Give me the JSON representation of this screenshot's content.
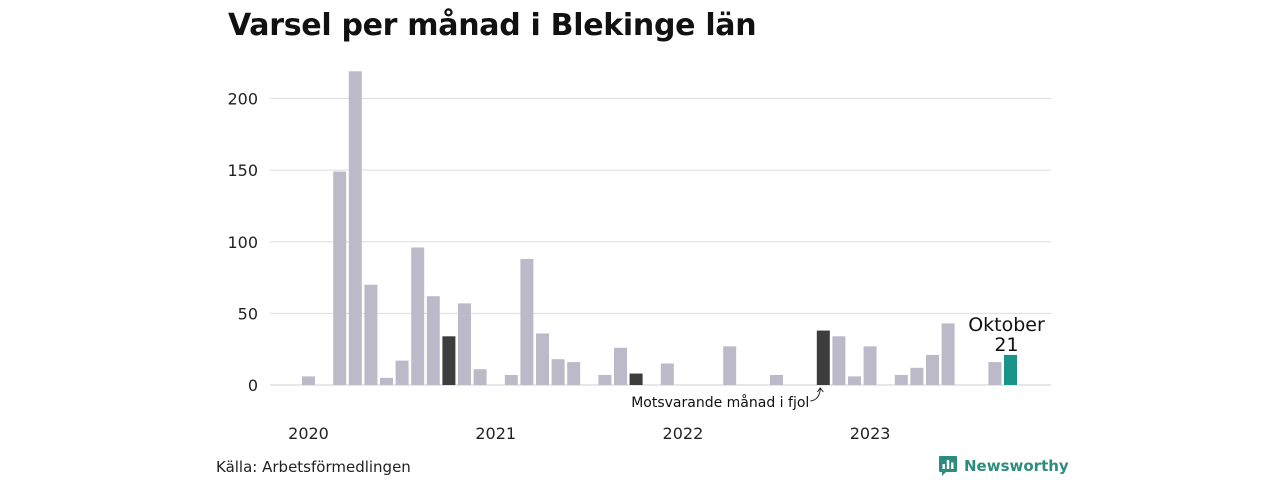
{
  "chart_data": {
    "type": "bar",
    "title": "Varsel per månad i Blekinge län",
    "xlabel": "",
    "ylabel": "",
    "ylim": [
      0,
      230
    ],
    "yticks": [
      0,
      50,
      100,
      150,
      200
    ],
    "year_labels": [
      "2020",
      "2021",
      "2022",
      "2023"
    ],
    "categories": [
      "2020-01",
      "2020-02",
      "2020-03",
      "2020-04",
      "2020-05",
      "2020-06",
      "2020-07",
      "2020-08",
      "2020-09",
      "2020-10",
      "2020-11",
      "2020-12",
      "2021-01",
      "2021-02",
      "2021-03",
      "2021-04",
      "2021-05",
      "2021-06",
      "2021-07",
      "2021-08",
      "2021-09",
      "2021-10",
      "2021-11",
      "2021-12",
      "2022-01",
      "2022-02",
      "2022-03",
      "2022-04",
      "2022-05",
      "2022-06",
      "2022-07",
      "2022-08",
      "2022-09",
      "2022-10",
      "2022-11",
      "2022-12",
      "2023-01",
      "2023-02",
      "2023-03",
      "2023-04",
      "2023-05",
      "2023-06",
      "2023-07",
      "2023-08",
      "2023-09",
      "2023-10"
    ],
    "values": [
      6,
      0,
      149,
      219,
      70,
      5,
      17,
      96,
      62,
      34,
      57,
      11,
      0,
      7,
      88,
      36,
      18,
      16,
      0,
      7,
      26,
      8,
      0,
      15,
      0,
      0,
      0,
      27,
      0,
      0,
      7,
      0,
      0,
      38,
      34,
      6,
      27,
      0,
      7,
      12,
      21,
      43,
      0,
      0,
      16,
      21
    ],
    "highlight": {
      "october_dark": [
        "2020-10",
        "2021-10",
        "2022-10"
      ],
      "current": "2023-10"
    },
    "colors": {
      "default": "#bcbac8",
      "previous_october": "#3d3d3d",
      "current": "#1a9488",
      "gridline": "#dddddd",
      "brand": "#2e8c7e"
    },
    "annotations": {
      "current_month_name": "Oktober",
      "current_value_label": "21",
      "comparison_label": "Motsvarande månad i fjol"
    },
    "grid": true,
    "legend": "none"
  },
  "footer": {
    "source": "Källa: Arbetsförmedlingen",
    "brand": "Newsworthy",
    "brand_icon": "bar-chart-speech-bubble-icon"
  }
}
